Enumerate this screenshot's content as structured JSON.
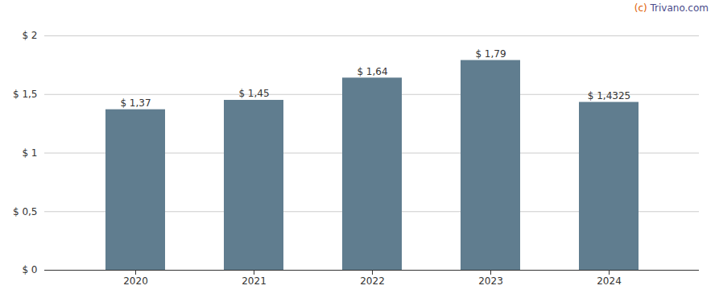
{
  "chart_data": {
    "type": "bar",
    "categories": [
      "2020",
      "2021",
      "2022",
      "2023",
      "2024"
    ],
    "values": [
      1.37,
      1.45,
      1.64,
      1.79,
      1.4325
    ],
    "value_labels": [
      "$ 1,37",
      "$ 1,45",
      "$ 1,64",
      "$ 1,79",
      "$ 1,4325"
    ],
    "data_labels": true,
    "color": "#607d8f",
    "ylim": [
      0,
      2.0
    ],
    "yticks": [
      {
        "value": 0,
        "label": "$ 0"
      },
      {
        "value": 0.5,
        "label": "$ 0,5"
      },
      {
        "value": 1.0,
        "label": "$ 1"
      },
      {
        "value": 1.5,
        "label": "$ 1,5"
      },
      {
        "value": 2.0,
        "label": "$ 2"
      }
    ],
    "grid": true,
    "annotations": [
      {
        "text": "(c) Trivano.com",
        "colors": [
          "#e05c00",
          "#4a4a8a"
        ]
      }
    ]
  }
}
